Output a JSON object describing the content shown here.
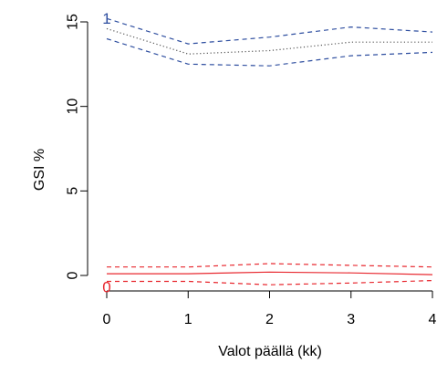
{
  "chart_data": {
    "type": "line",
    "xlabel": "Valot päällä (kk)",
    "ylabel": "GSI %",
    "xlim": [
      0,
      4
    ],
    "ylim": [
      -1.2,
      15.7
    ],
    "x_ticks": [
      0,
      1,
      2,
      3,
      4
    ],
    "y_ticks": [
      0,
      5,
      10,
      15
    ],
    "grid": false,
    "colors": {
      "group1": "#2f4fa0",
      "group0": "#e8282f",
      "dotted": "#555555"
    },
    "series": [
      {
        "marker_label": "1",
        "color": "#2f4fa0",
        "style": "dashed",
        "x": [
          0,
          1,
          2,
          3,
          4
        ],
        "y": [
          15.2,
          13.7,
          14.1,
          14.7,
          14.4
        ]
      },
      {
        "color": "#555555",
        "style": "dotted",
        "x": [
          0,
          1,
          2,
          3,
          4
        ],
        "y": [
          14.6,
          13.1,
          13.3,
          13.8,
          13.8
        ]
      },
      {
        "color": "#2f4fa0",
        "style": "dashed",
        "x": [
          0,
          1,
          2,
          3,
          4
        ],
        "y": [
          14.0,
          12.5,
          12.4,
          13.0,
          13.2
        ]
      },
      {
        "color": "#e8282f",
        "style": "dashed",
        "x": [
          0,
          1,
          2,
          3,
          4
        ],
        "y": [
          0.5,
          0.5,
          0.7,
          0.6,
          0.5
        ]
      },
      {
        "marker_label": "0",
        "color": "#e8282f",
        "style": "solid",
        "x": [
          0,
          1,
          2,
          3,
          4
        ],
        "y": [
          0.1,
          0.1,
          0.2,
          0.15,
          0.05
        ]
      },
      {
        "color": "#e8282f",
        "style": "dashed",
        "x": [
          0,
          1,
          2,
          3,
          4
        ],
        "y": [
          -0.35,
          -0.35,
          -0.55,
          -0.45,
          -0.3
        ]
      }
    ]
  }
}
